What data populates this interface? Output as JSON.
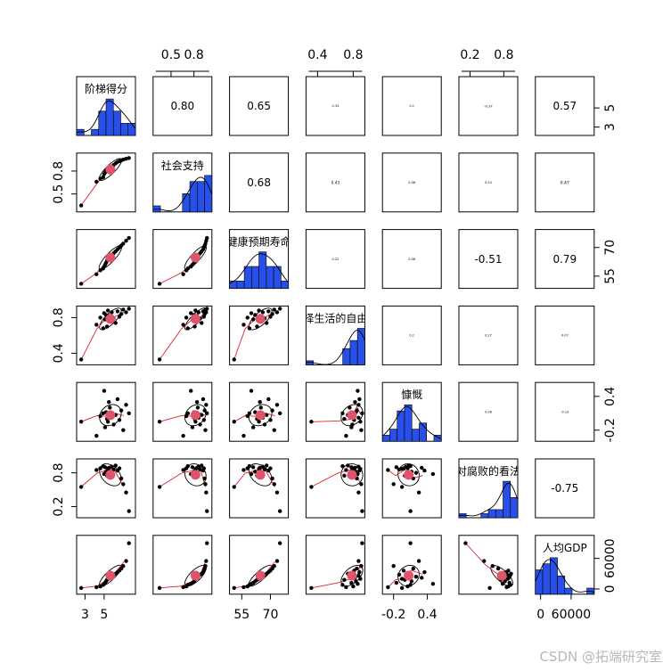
{
  "watermark": "CSDN @拓端研究室",
  "colors": {
    "hist_fill": "#2850e8",
    "smoother": "#e0202f",
    "centroid": "#df536b",
    "points": "#000000"
  },
  "chart_data": {
    "type": "scatter",
    "title": "",
    "variables": [
      "阶梯得分",
      "社会支持",
      "健康预期寿命",
      "选择生活的自由",
      "慷慨",
      "对腐败的看法",
      "人均GDP"
    ],
    "diagonal_display": [
      "阶梯得分",
      "社会支持",
      "健康预期寿命",
      "择生活的自由",
      "慷慨",
      "对腐败的看法",
      "人均GDP"
    ],
    "ranges": [
      [
        2.4,
        8.0
      ],
      [
        0.3,
        1.0
      ],
      [
        50,
        78
      ],
      [
        0.3,
        0.9
      ],
      [
        -0.35,
        0.6
      ],
      [
        0.05,
        1.0
      ],
      [
        -5000,
        100000
      ]
    ],
    "top_axes": [
      {
        "var": 1,
        "ticks": [
          0.5,
          0.8
        ]
      },
      {
        "var": 3,
        "ticks": [
          0.4,
          0.8
        ]
      },
      {
        "var": 5,
        "ticks": [
          0.2,
          0.8
        ]
      }
    ],
    "bottom_axes": [
      {
        "var": 0,
        "ticks": [
          3,
          5
        ]
      },
      {
        "var": 2,
        "ticks": [
          55,
          70
        ]
      },
      {
        "var": 4,
        "ticks": [
          -0.2,
          0.4
        ]
      },
      {
        "var": 6,
        "ticks": [
          0,
          60000
        ]
      }
    ],
    "left_axes": [
      {
        "var": 1,
        "ticks": [
          0.5,
          0.8
        ]
      },
      {
        "var": 3,
        "ticks": [
          0.4,
          0.8
        ]
      },
      {
        "var": 5,
        "ticks": [
          0.2,
          0.8
        ]
      }
    ],
    "right_axes": [
      {
        "var": 0,
        "ticks": [
          3,
          5
        ]
      },
      {
        "var": 2,
        "ticks": [
          55,
          70
        ]
      },
      {
        "var": 4,
        "ticks": [
          -0.2,
          0.4
        ]
      },
      {
        "var": 6,
        "ticks": [
          0,
          60000
        ]
      }
    ],
    "correlations": [
      [
        null,
        "0.80",
        "0.65",
        "0.34",
        "0.1",
        "-0.37",
        "0.57"
      ],
      [
        null,
        null,
        "0.68",
        "0.43",
        "0.08",
        "0.24",
        "0.47"
      ],
      [
        null,
        null,
        null,
        "0.22",
        "0.08",
        "-0.51",
        "0.79"
      ],
      [
        null,
        null,
        null,
        null,
        "0.2",
        "0.27",
        "0.07"
      ],
      [
        null,
        null,
        null,
        null,
        null,
        "0.08",
        "-0.13"
      ],
      [
        null,
        null,
        null,
        null,
        null,
        null,
        "-0.75"
      ]
    ],
    "observations": [
      [
        2.6,
        0.35,
        51.0,
        0.33,
        -0.05,
        0.55,
        2000
      ],
      [
        4.2,
        0.66,
        56.0,
        0.72,
        -0.3,
        0.85,
        3500
      ],
      [
        4.6,
        0.7,
        58.0,
        0.8,
        0.05,
        0.88,
        5000
      ],
      [
        4.9,
        0.72,
        59.0,
        0.68,
        0.1,
        0.92,
        8000
      ],
      [
        5.0,
        0.76,
        60.0,
        0.85,
        0.5,
        0.78,
        10000
      ],
      [
        5.1,
        0.78,
        61.0,
        0.78,
        -0.15,
        0.9,
        12000
      ],
      [
        5.2,
        0.8,
        62.0,
        0.83,
        0.12,
        0.82,
        15000
      ],
      [
        5.3,
        0.81,
        63.0,
        0.7,
        0.0,
        0.75,
        18000
      ],
      [
        5.4,
        0.82,
        64.0,
        0.88,
        -0.05,
        0.87,
        20000
      ],
      [
        5.5,
        0.84,
        64.5,
        0.82,
        0.3,
        0.89,
        22000
      ],
      [
        5.6,
        0.85,
        65.0,
        0.76,
        0.2,
        0.8,
        24000
      ],
      [
        5.8,
        0.86,
        66.0,
        0.86,
        0.02,
        0.91,
        26000
      ],
      [
        6.0,
        0.88,
        67.0,
        0.79,
        -0.1,
        0.86,
        28000
      ],
      [
        6.2,
        0.9,
        68.0,
        0.74,
        0.07,
        0.93,
        30000
      ],
      [
        6.4,
        0.92,
        69.0,
        0.87,
        0.35,
        0.84,
        33000
      ],
      [
        6.6,
        0.93,
        70.0,
        0.81,
        -0.02,
        0.88,
        36000
      ],
      [
        6.8,
        0.94,
        71.0,
        0.84,
        0.15,
        0.7,
        40000
      ],
      [
        7.0,
        0.95,
        72.0,
        0.89,
        -0.2,
        0.6,
        45000
      ],
      [
        7.3,
        0.96,
        73.5,
        0.86,
        0.25,
        0.45,
        55000
      ],
      [
        7.6,
        0.97,
        75.0,
        0.9,
        0.1,
        0.12,
        90000
      ]
    ]
  }
}
